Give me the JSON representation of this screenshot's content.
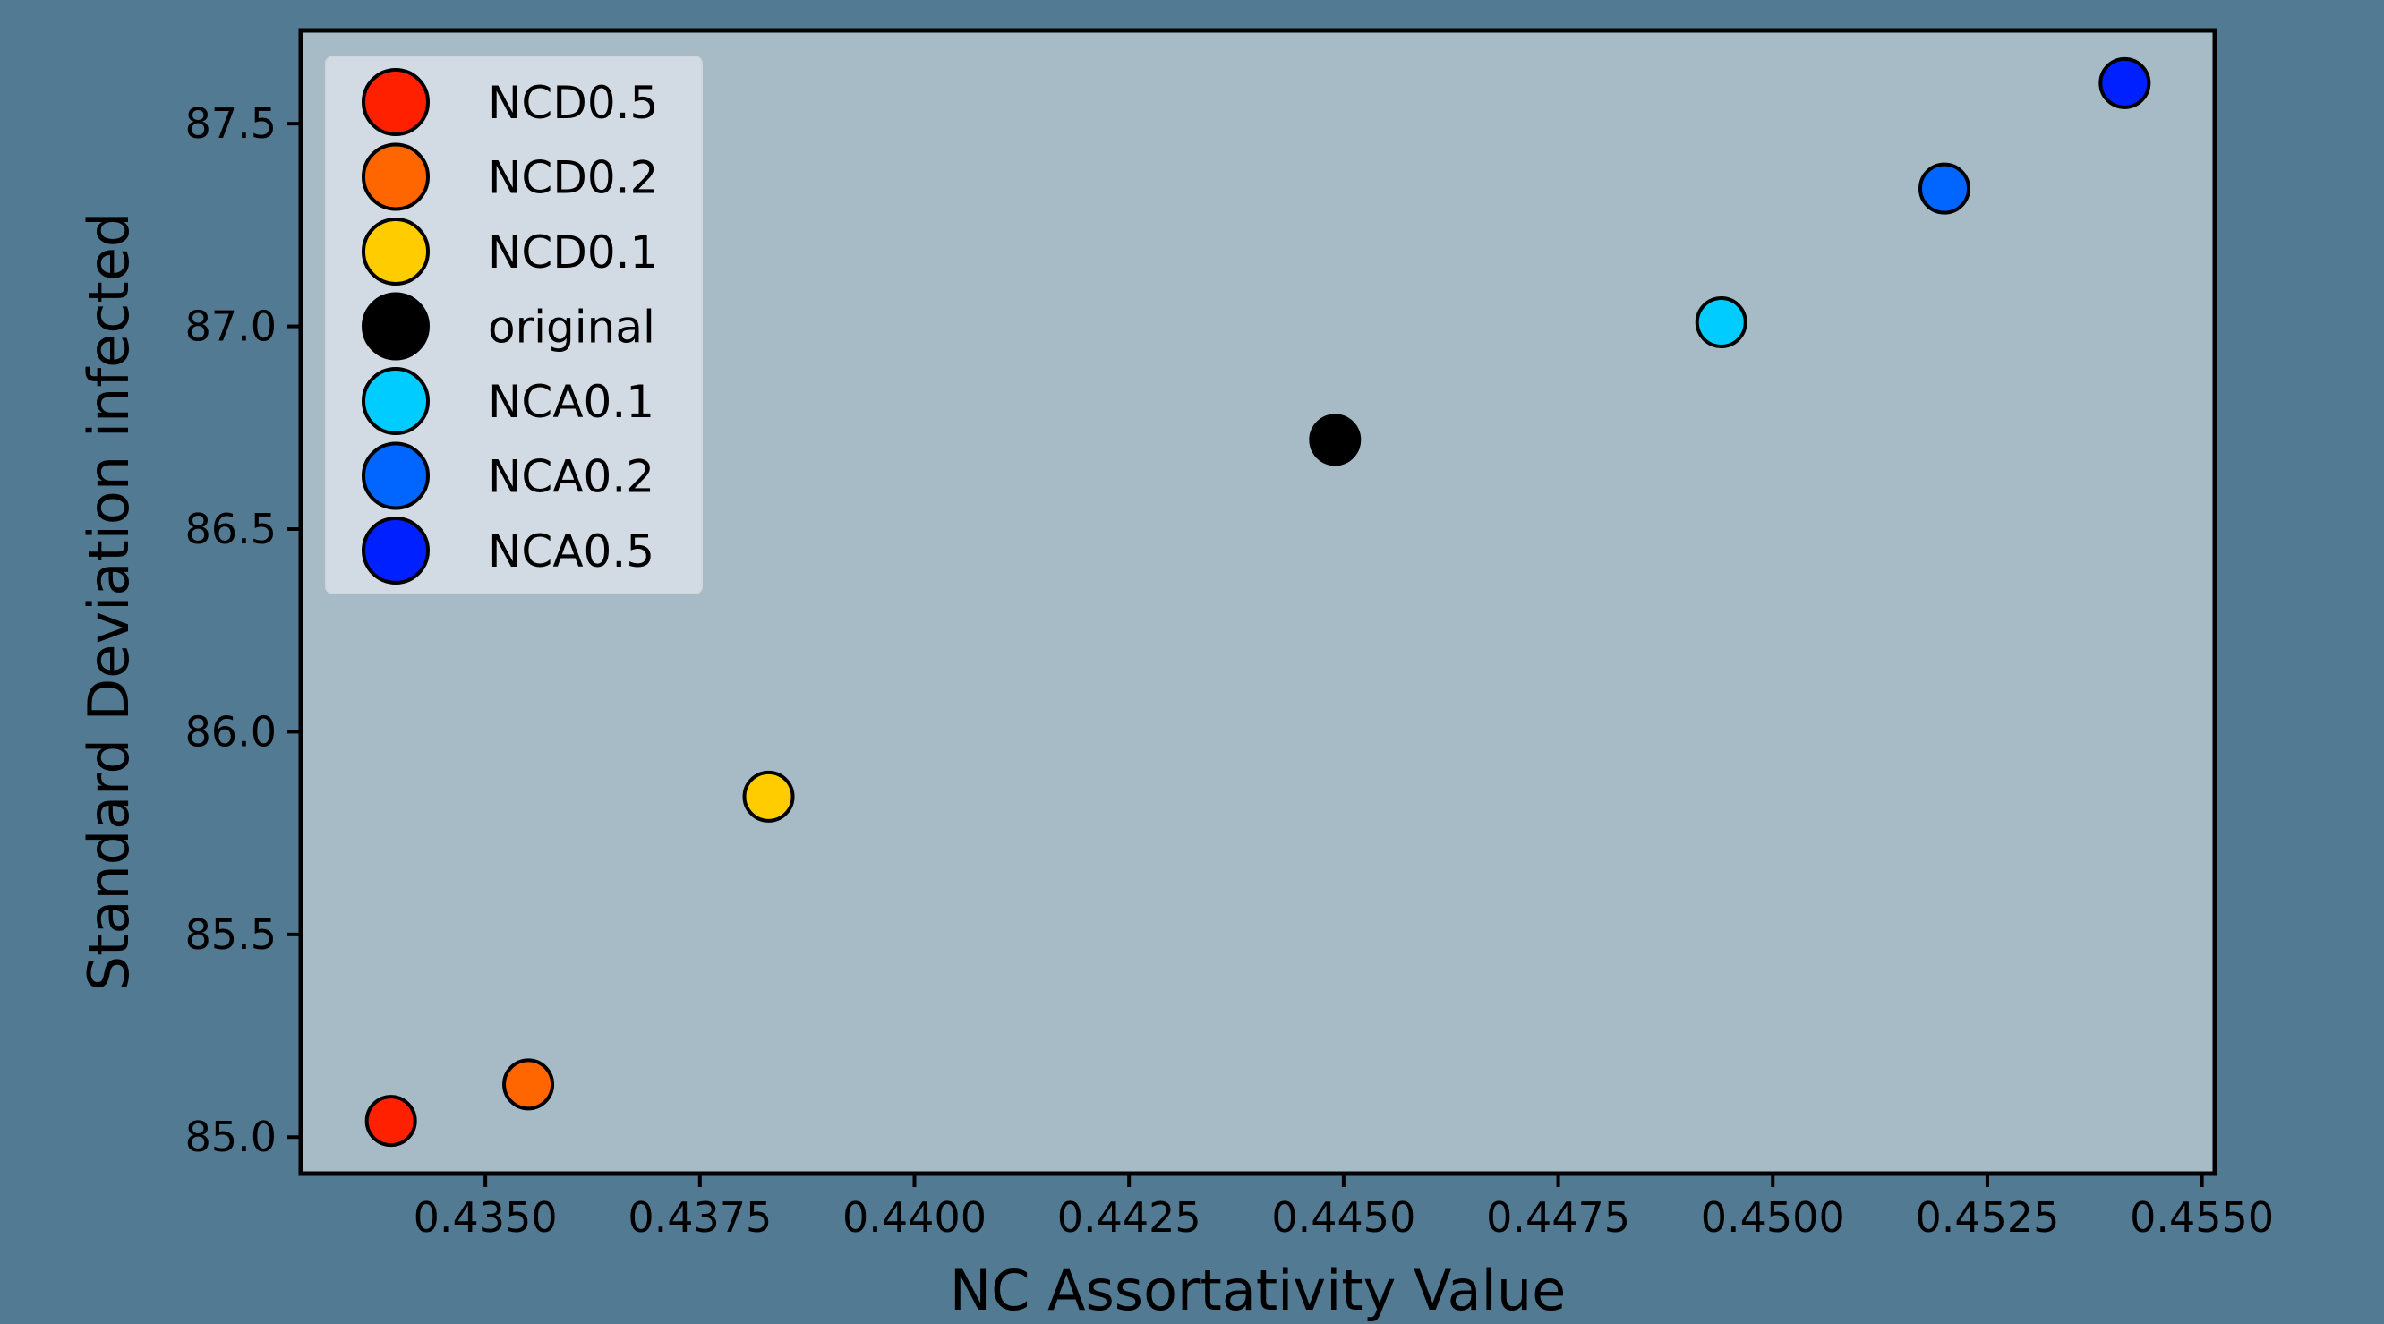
{
  "chart_data": {
    "type": "scatter",
    "title": "",
    "xlabel": "NC Assortativity Value",
    "ylabel": "Standard Deviation infected",
    "xlim": [
      0.43285,
      0.45515
    ],
    "ylim": [
      84.91,
      87.73
    ],
    "xticks": [
      0.435,
      0.4375,
      0.44,
      0.4425,
      0.445,
      0.4475,
      0.45,
      0.4525,
      0.455
    ],
    "xtick_labels": [
      "0.4350",
      "0.4375",
      "0.4400",
      "0.4425",
      "0.4450",
      "0.4475",
      "0.4500",
      "0.4525",
      "0.4550"
    ],
    "yticks": [
      85.0,
      85.5,
      86.0,
      86.5,
      87.0,
      87.5
    ],
    "ytick_labels": [
      "85.0",
      "85.5",
      "86.0",
      "86.5",
      "87.0",
      "87.5"
    ],
    "grid": false,
    "legend_position": "top-left",
    "plot_background": "#a7bbc6",
    "series": [
      {
        "name": "NCD0.5",
        "color": "#ff2000",
        "x": 0.4339,
        "y": 85.04
      },
      {
        "name": "NCD0.2",
        "color": "#ff6600",
        "x": 0.4355,
        "y": 85.13
      },
      {
        "name": "NCD0.1",
        "color": "#ffcc00",
        "x": 0.4383,
        "y": 85.84
      },
      {
        "name": "original",
        "color": "#000000",
        "x": 0.4449,
        "y": 86.72
      },
      {
        "name": "NCA0.1",
        "color": "#00ccff",
        "x": 0.4494,
        "y": 87.01
      },
      {
        "name": "NCA0.2",
        "color": "#0066ff",
        "x": 0.452,
        "y": 87.34
      },
      {
        "name": "NCA0.5",
        "color": "#0020ff",
        "x": 0.4541,
        "y": 87.6
      }
    ]
  }
}
